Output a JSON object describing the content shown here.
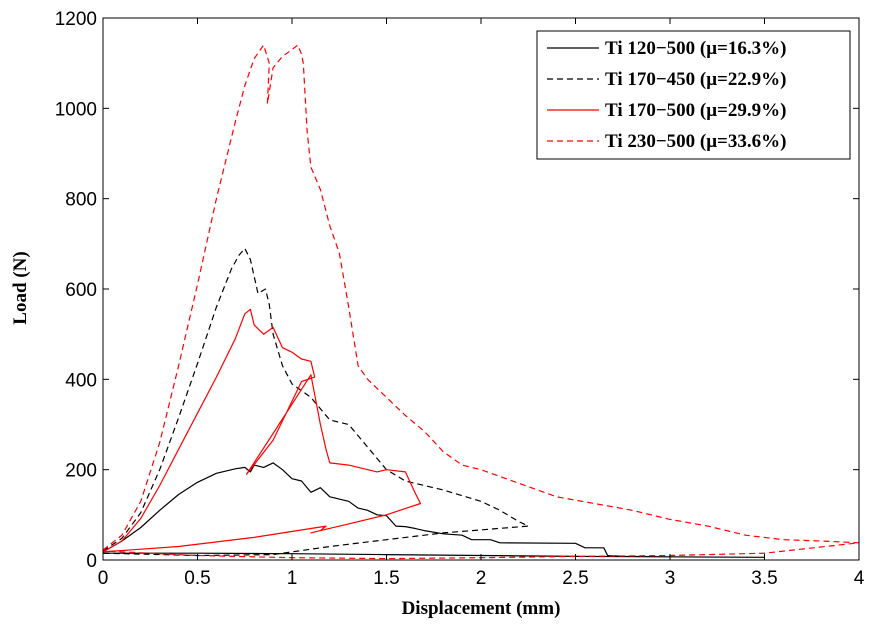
{
  "chart_data": {
    "type": "line",
    "title": "",
    "xlabel": "Displacement (mm)",
    "ylabel": "Load (N)",
    "xlim": [
      0,
      4
    ],
    "ylim": [
      0,
      1200
    ],
    "xticks": [
      0,
      0.5,
      1,
      1.5,
      2,
      2.5,
      3,
      3.5,
      4
    ],
    "xtick_labels": [
      "0",
      "0.5",
      "1",
      "1.5",
      "2",
      "2.5",
      "3",
      "3.5",
      "4"
    ],
    "yticks": [
      0,
      200,
      400,
      600,
      800,
      1000,
      1200
    ],
    "ytick_labels": [
      "0",
      "200",
      "400",
      "600",
      "800",
      "1000",
      "1200"
    ],
    "grid": false,
    "legend_position": "top-right",
    "series": [
      {
        "name": "Ti 120−500 (μ=16.3%)",
        "color": "#000000",
        "dash": "solid",
        "points": [
          [
            0,
            18
          ],
          [
            0.05,
            30
          ],
          [
            0.1,
            42
          ],
          [
            0.2,
            72
          ],
          [
            0.3,
            110
          ],
          [
            0.4,
            145
          ],
          [
            0.5,
            172
          ],
          [
            0.6,
            192
          ],
          [
            0.7,
            202
          ],
          [
            0.75,
            205
          ],
          [
            0.78,
            195
          ],
          [
            0.8,
            210
          ],
          [
            0.85,
            205
          ],
          [
            0.9,
            215
          ],
          [
            0.95,
            200
          ],
          [
            1.0,
            180
          ],
          [
            1.05,
            175
          ],
          [
            1.1,
            150
          ],
          [
            1.15,
            160
          ],
          [
            1.2,
            140
          ],
          [
            1.3,
            130
          ],
          [
            1.35,
            115
          ],
          [
            1.4,
            110
          ],
          [
            1.45,
            100
          ],
          [
            1.5,
            98
          ],
          [
            1.55,
            75
          ],
          [
            1.6,
            74
          ],
          [
            1.65,
            70
          ],
          [
            1.7,
            65
          ],
          [
            1.8,
            58
          ],
          [
            1.9,
            55
          ],
          [
            1.95,
            45
          ],
          [
            2.05,
            45
          ],
          [
            2.1,
            38
          ],
          [
            2.5,
            37
          ],
          [
            2.55,
            27
          ],
          [
            2.65,
            27
          ],
          [
            2.67,
            10
          ],
          [
            2.75,
            8
          ],
          [
            3.0,
            7
          ],
          [
            3.5,
            6
          ],
          [
            2.5,
            8
          ],
          [
            1.5,
            12
          ],
          [
            1.0,
            14
          ],
          [
            0.5,
            15
          ],
          [
            0,
            15
          ]
        ]
      },
      {
        "name": "Ti 170−450 (μ=22.9%)",
        "color": "#000000",
        "dash": "dashed",
        "points": [
          [
            0,
            20
          ],
          [
            0.1,
            48
          ],
          [
            0.2,
            105
          ],
          [
            0.3,
            200
          ],
          [
            0.4,
            315
          ],
          [
            0.5,
            435
          ],
          [
            0.6,
            560
          ],
          [
            0.68,
            645
          ],
          [
            0.72,
            675
          ],
          [
            0.75,
            690
          ],
          [
            0.78,
            665
          ],
          [
            0.82,
            590
          ],
          [
            0.86,
            600
          ],
          [
            0.88,
            565
          ],
          [
            0.9,
            500
          ],
          [
            0.95,
            430
          ],
          [
            1.0,
            390
          ],
          [
            1.1,
            360
          ],
          [
            1.2,
            310
          ],
          [
            1.3,
            300
          ],
          [
            1.4,
            250
          ],
          [
            1.5,
            200
          ],
          [
            1.6,
            175
          ],
          [
            1.8,
            155
          ],
          [
            2.0,
            130
          ],
          [
            2.1,
            110
          ],
          [
            2.2,
            85
          ],
          [
            2.25,
            75
          ],
          [
            1.8,
            60
          ],
          [
            1.2,
            30
          ],
          [
            0.9,
            12
          ],
          [
            0.5,
            10
          ],
          [
            0,
            15
          ]
        ]
      },
      {
        "name": "Ti 170−500 (μ=29.9%)",
        "color": "#ff0000",
        "dash": "solid",
        "points": [
          [
            0,
            18
          ],
          [
            0.1,
            42
          ],
          [
            0.2,
            92
          ],
          [
            0.3,
            165
          ],
          [
            0.4,
            245
          ],
          [
            0.5,
            325
          ],
          [
            0.6,
            405
          ],
          [
            0.7,
            490
          ],
          [
            0.75,
            545
          ],
          [
            0.78,
            555
          ],
          [
            0.8,
            520
          ],
          [
            0.85,
            500
          ],
          [
            0.9,
            515
          ],
          [
            0.95,
            470
          ],
          [
            1.0,
            460
          ],
          [
            1.05,
            445
          ],
          [
            1.1,
            440
          ],
          [
            1.12,
            405
          ],
          [
            1.05,
            395
          ],
          [
            0.9,
            265
          ],
          [
            0.76,
            190
          ],
          [
            0.9,
            280
          ],
          [
            1.1,
            410
          ],
          [
            1.15,
            300
          ],
          [
            1.18,
            245
          ],
          [
            1.2,
            215
          ],
          [
            1.3,
            210
          ],
          [
            1.45,
            195
          ],
          [
            1.5,
            200
          ],
          [
            1.6,
            195
          ],
          [
            1.65,
            150
          ],
          [
            1.68,
            125
          ],
          [
            1.5,
            100
          ],
          [
            1.3,
            80
          ],
          [
            1.15,
            65
          ],
          [
            1.1,
            60
          ],
          [
            1.15,
            65
          ],
          [
            1.18,
            75
          ],
          [
            0.8,
            50
          ],
          [
            0.4,
            30
          ],
          [
            0,
            18
          ]
        ]
      },
      {
        "name": "Ti 230−500 (μ=33.6%)",
        "color": "#ff0000",
        "dash": "dashed",
        "points": [
          [
            0,
            22
          ],
          [
            0.1,
            55
          ],
          [
            0.2,
            130
          ],
          [
            0.3,
            260
          ],
          [
            0.4,
            430
          ],
          [
            0.5,
            610
          ],
          [
            0.6,
            800
          ],
          [
            0.7,
            970
          ],
          [
            0.75,
            1050
          ],
          [
            0.8,
            1110
          ],
          [
            0.85,
            1140
          ],
          [
            0.88,
            1100
          ],
          [
            0.87,
            1010
          ],
          [
            0.9,
            1090
          ],
          [
            0.95,
            1115
          ],
          [
            1.0,
            1130
          ],
          [
            1.03,
            1140
          ],
          [
            1.05,
            1120
          ],
          [
            1.06,
            1100
          ],
          [
            1.08,
            950
          ],
          [
            1.1,
            870
          ],
          [
            1.15,
            820
          ],
          [
            1.2,
            740
          ],
          [
            1.25,
            680
          ],
          [
            1.3,
            560
          ],
          [
            1.35,
            430
          ],
          [
            1.4,
            400
          ],
          [
            1.5,
            360
          ],
          [
            1.6,
            320
          ],
          [
            1.7,
            285
          ],
          [
            1.8,
            240
          ],
          [
            1.9,
            210
          ],
          [
            2.0,
            200
          ],
          [
            2.2,
            170
          ],
          [
            2.4,
            140
          ],
          [
            2.6,
            125
          ],
          [
            2.8,
            110
          ],
          [
            3.0,
            90
          ],
          [
            3.2,
            75
          ],
          [
            3.4,
            55
          ],
          [
            3.6,
            45
          ],
          [
            3.8,
            42
          ],
          [
            4.0,
            38
          ],
          [
            3.5,
            15
          ],
          [
            3.0,
            10
          ],
          [
            2.5,
            8
          ],
          [
            2.0,
            5
          ],
          [
            1.5,
            3
          ],
          [
            1.0,
            5
          ],
          [
            0.5,
            10
          ],
          [
            0,
            20
          ]
        ]
      }
    ]
  }
}
